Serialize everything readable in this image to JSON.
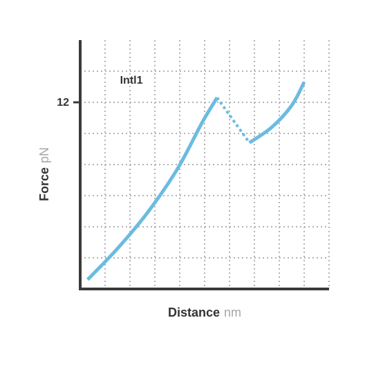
{
  "colors": {
    "axis": "#3a3a3a",
    "grid": "#b3b3b3",
    "curve": "#6bbbe0",
    "label": "#333333",
    "unit": "#a6a6a6"
  },
  "chart_data": {
    "type": "line",
    "title": "",
    "xlabel": "Distance",
    "xunit": "nm",
    "ylabel": "Force",
    "yunit": "pN",
    "xlim": [
      0,
      10
    ],
    "ylim": [
      0,
      16
    ],
    "xticks": [
      1,
      2,
      3,
      4,
      5,
      6,
      7,
      8,
      9,
      10
    ],
    "yticks": [
      2,
      4,
      6,
      8,
      10,
      12,
      14
    ],
    "labeled_yticks": [
      {
        "value": 12,
        "label": "12"
      }
    ],
    "grid": true,
    "annotation": {
      "text": "Intl1",
      "x": 1.6,
      "y": 13.2
    },
    "series": [
      {
        "style": "solid",
        "points": [
          [
            0.3,
            0.6
          ],
          [
            1.5,
            2.6
          ],
          [
            2.7,
            4.9
          ],
          [
            3.9,
            7.7
          ],
          [
            4.9,
            10.7
          ],
          [
            5.5,
            12.3
          ]
        ]
      },
      {
        "style": "dotted",
        "points": [
          [
            5.5,
            12.3
          ],
          [
            6.8,
            9.4
          ]
        ]
      },
      {
        "style": "solid",
        "points": [
          [
            6.8,
            9.4
          ],
          [
            7.7,
            10.4
          ],
          [
            8.5,
            11.8
          ],
          [
            9.0,
            13.3
          ]
        ]
      }
    ]
  }
}
